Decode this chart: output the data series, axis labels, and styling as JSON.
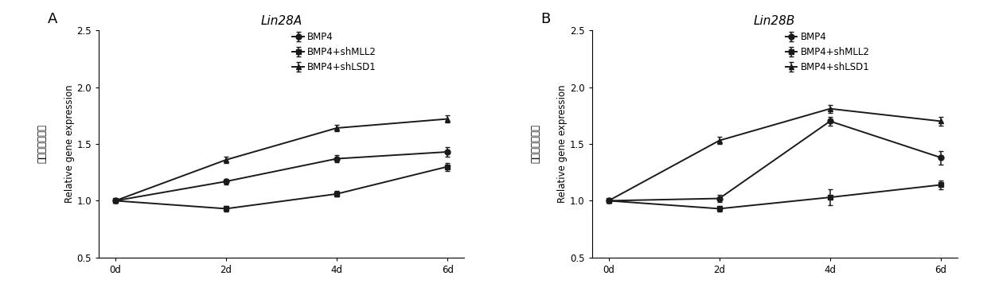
{
  "panel_A": {
    "title": "Lin28A",
    "x": [
      0,
      2,
      4,
      6
    ],
    "x_labels": [
      "0d",
      "2d",
      "4d",
      "6d"
    ],
    "series": [
      {
        "label": "BMP4",
        "y": [
          1.0,
          1.17,
          1.37,
          1.43
        ],
        "yerr": [
          0.02,
          0.025,
          0.03,
          0.04
        ],
        "marker": "o"
      },
      {
        "label": "BMP4+shMLL2",
        "y": [
          1.0,
          0.93,
          1.06,
          1.3
        ],
        "yerr": [
          0.02,
          0.025,
          0.025,
          0.035
        ],
        "marker": "s"
      },
      {
        "label": "BMP4+shLSD1",
        "y": [
          1.0,
          1.36,
          1.64,
          1.72
        ],
        "yerr": [
          0.02,
          0.025,
          0.03,
          0.03
        ],
        "marker": "^"
      }
    ],
    "ylim": [
      0.5,
      2.5
    ],
    "yticks": [
      0.5,
      1.0,
      1.5,
      2.0,
      2.5
    ],
    "ylabel_chinese": "基因相对表达量",
    "ylabel_english": "Relative gene expression",
    "panel_label": "A"
  },
  "panel_B": {
    "title": "Lin28B",
    "x": [
      0,
      2,
      4,
      6
    ],
    "x_labels": [
      "0d",
      "2d",
      "4d",
      "6d"
    ],
    "series": [
      {
        "label": "BMP4",
        "y": [
          1.0,
          1.02,
          1.7,
          1.38
        ],
        "yerr": [
          0.02,
          0.03,
          0.04,
          0.06
        ],
        "marker": "o"
      },
      {
        "label": "BMP4+shMLL2",
        "y": [
          1.0,
          0.93,
          1.03,
          1.14
        ],
        "yerr": [
          0.02,
          0.025,
          0.07,
          0.04
        ],
        "marker": "s"
      },
      {
        "label": "BMP4+shLSD1",
        "y": [
          1.0,
          1.53,
          1.81,
          1.7
        ],
        "yerr": [
          0.02,
          0.03,
          0.035,
          0.04
        ],
        "marker": "^"
      }
    ],
    "ylim": [
      0.5,
      2.5
    ],
    "yticks": [
      0.5,
      1.0,
      1.5,
      2.0,
      2.5
    ],
    "ylabel_chinese": "基因相对表达量",
    "ylabel_english": "Relative gene expression",
    "panel_label": "B"
  },
  "line_color": "#1a1a1a",
  "marker_size": 5,
  "linewidth": 1.4,
  "capsize": 2.5,
  "elinewidth": 1.1,
  "background_color": "#ffffff",
  "font_size_title": 11,
  "font_size_ylabel_en": 8.5,
  "font_size_ylabel_cn": 8.5,
  "font_size_ticks": 8.5,
  "font_size_legend": 8.5,
  "font_size_panel_label": 13
}
